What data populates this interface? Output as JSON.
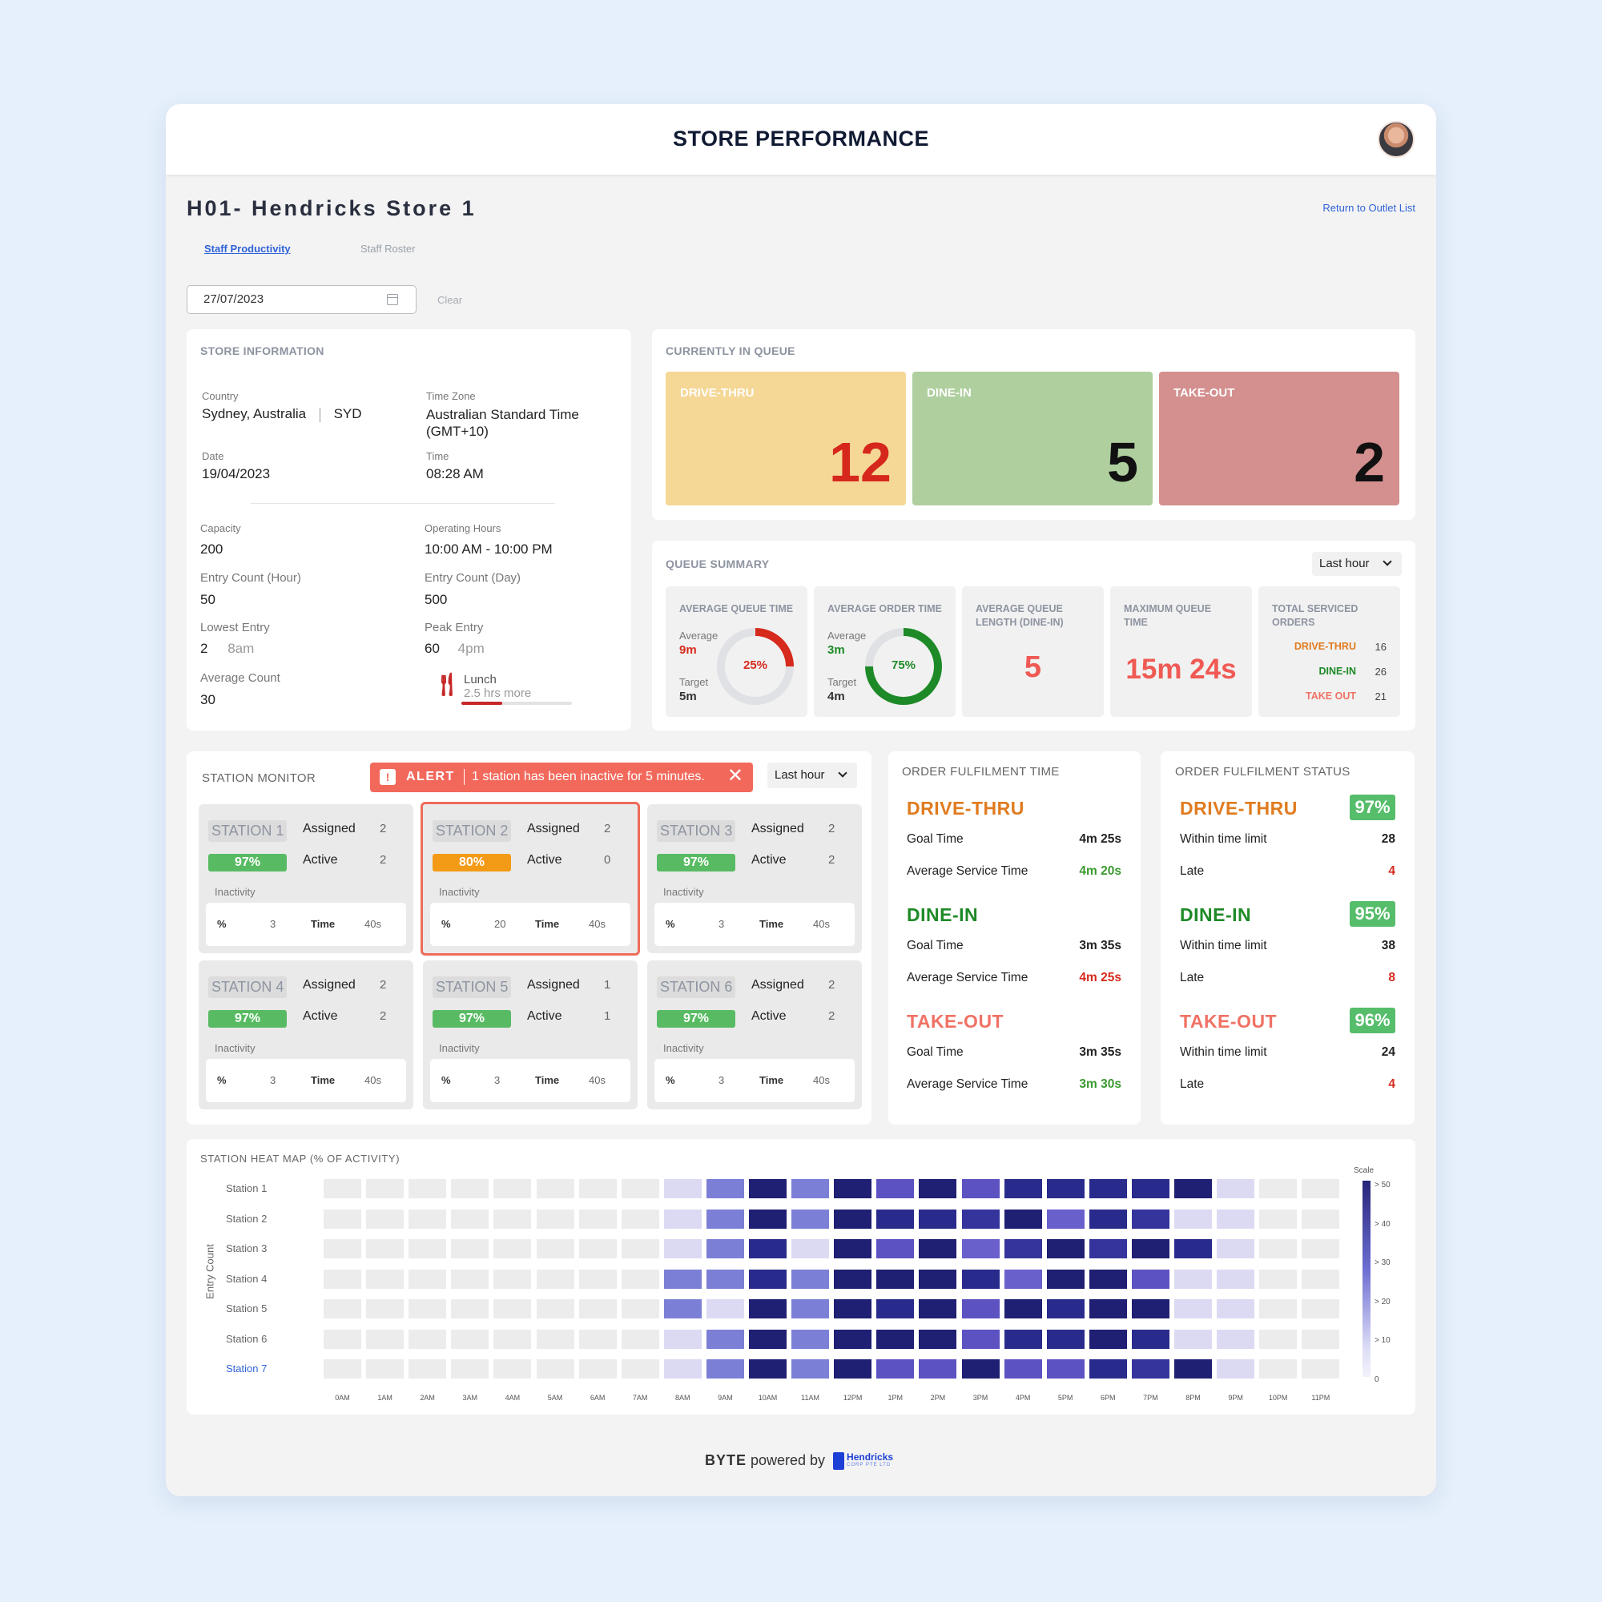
{
  "header": {
    "title": "STORE PERFORMANCE"
  },
  "store": {
    "name": "H01- Hendricks Store 1",
    "return_link": "Return to Outlet List"
  },
  "tabs": [
    {
      "label": "Staff Productivity"
    },
    {
      "label": "Staff Roster"
    }
  ],
  "date_filter": {
    "value": "27/07/2023",
    "clear_label": "Clear"
  },
  "store_info": {
    "title": "STORE INFORMATION",
    "country_label": "Country",
    "country": "Sydney, Australia",
    "country_code": "SYD",
    "timezone_label": "Time Zone",
    "timezone": "Australian Standard Time (GMT+10)",
    "date_label": "Date",
    "date": "19/04/2023",
    "time_label": "Time",
    "time": "08:28 AM",
    "capacity_label": "Capacity",
    "capacity": "200",
    "hours_label": "Operating Hours",
    "hours": "10:00 AM - 10:00 PM",
    "entry_hour_label": "Entry Count (Hour)",
    "entry_hour": "50",
    "entry_day_label": "Entry Count (Day)",
    "entry_day": "500",
    "lowest_label": "Lowest Entry",
    "lowest_value": "2",
    "lowest_time": "8am",
    "peak_label": "Peak Entry",
    "peak_value": "60",
    "peak_time": "4pm",
    "avg_label": "Average Count",
    "avg": "30",
    "lunch_label": "Lunch",
    "lunch_remaining": "2.5 hrs more",
    "lunch_progress": 0.37
  },
  "queue": {
    "title": "CURRENTLY IN QUEUE",
    "items": [
      {
        "label": "DRIVE-THRU",
        "value": "12",
        "bg": "#f5d796",
        "color": "#d6271c"
      },
      {
        "label": "DINE-IN",
        "value": "5",
        "bg": "#afcf9f",
        "color": "#111111"
      },
      {
        "label": "TAKE-OUT",
        "value": "2",
        "bg": "#d48f8f",
        "color": "#111111"
      }
    ]
  },
  "summary": {
    "title": "QUEUE SUMMARY",
    "range": "Last hour",
    "avg_queue": {
      "head": "AVERAGE QUEUE TIME",
      "avg_label": "Average",
      "avg": "9m",
      "target_label": "Target",
      "target": "5m",
      "pct": "25%",
      "fraction": 0.25
    },
    "avg_order": {
      "head": "AVERAGE ORDER TIME",
      "avg_label": "Average",
      "avg": "3m",
      "target_label": "Target",
      "target": "4m",
      "pct": "75%",
      "fraction": 0.75
    },
    "avg_len": {
      "head": "AVERAGE QUEUE LENGTH (DINE-IN)",
      "value": "5"
    },
    "max_queue": {
      "head": "MAXIMUM QUEUE TIME",
      "value": "15m 24s"
    },
    "total": {
      "head": "TOTAL SERVICED ORDERS",
      "rows": [
        {
          "label": "DRIVE-THRU",
          "value": "16"
        },
        {
          "label": "DINE-IN",
          "value": "26"
        },
        {
          "label": "TAKE OUT",
          "value": "21"
        }
      ]
    }
  },
  "station_monitor": {
    "title": "STATION MONITOR",
    "alert_label": "ALERT",
    "alert_message": "1 station has been inactive for 5 minutes.",
    "range": "Last hour",
    "assigned_label": "Assigned",
    "active_label": "Active",
    "inactivity_label": "Inactivity",
    "pct_label": "%",
    "time_label": "Time",
    "stations": [
      {
        "name": "STATION 1",
        "pct": "97%",
        "assigned": "2",
        "active": "2",
        "inact_pct": "3",
        "inact_time": "40s"
      },
      {
        "name": "STATION 2",
        "pct": "80%",
        "assigned": "2",
        "active": "0",
        "inact_pct": "20",
        "inact_time": "40s"
      },
      {
        "name": "STATION 3",
        "pct": "97%",
        "assigned": "2",
        "active": "2",
        "inact_pct": "3",
        "inact_time": "40s"
      },
      {
        "name": "STATION 4",
        "pct": "97%",
        "assigned": "2",
        "active": "2",
        "inact_pct": "3",
        "inact_time": "40s"
      },
      {
        "name": "STATION 5",
        "pct": "97%",
        "assigned": "1",
        "active": "1",
        "inact_pct": "3",
        "inact_time": "40s"
      },
      {
        "name": "STATION 6",
        "pct": "97%",
        "assigned": "2",
        "active": "2",
        "inact_pct": "3",
        "inact_time": "40s"
      }
    ]
  },
  "fulfil_time": {
    "title": "ORDER FULFILMENT TIME",
    "goal_label": "Goal Time",
    "avg_label": "Average Service Time",
    "items": [
      {
        "name": "DRIVE-THRU",
        "goal": "4m 25s",
        "avg": "4m 20s"
      },
      {
        "name": "DINE-IN",
        "goal": "3m 35s",
        "avg": "4m 25s"
      },
      {
        "name": "TAKE-OUT",
        "goal": "3m 35s",
        "avg": "3m 30s"
      }
    ]
  },
  "fulfil_status": {
    "title": "ORDER FULFILMENT STATUS",
    "within_label": "Within time limit",
    "late_label": "Late",
    "items": [
      {
        "name": "DRIVE-THRU",
        "pct": "97%",
        "within": "28",
        "late": "4"
      },
      {
        "name": "DINE-IN",
        "pct": "95%",
        "within": "38",
        "late": "8"
      },
      {
        "name": "TAKE-OUT",
        "pct": "96%",
        "within": "24",
        "late": "4"
      }
    ]
  },
  "colors": {
    "drive_thru": "#e07b1f",
    "dine_in": "#1e8a27",
    "take_out": "#f07265",
    "good_green": "#3a9a2e",
    "bad_red": "#d62a1c",
    "green_pill": "#58bb63",
    "orange_pill": "#f39a17"
  },
  "heatmap": {
    "title": "STATION HEAT MAP (% OF ACTIVITY)",
    "y_axis_label": "Entry Count",
    "scale_label": "Scale",
    "scale_ticks": [
      "> 50",
      "> 40",
      "> 30",
      "> 20",
      "> 10",
      "0"
    ]
  },
  "chart_data": {
    "type": "heatmap",
    "title": "STATION HEAT MAP (% OF ACTIVITY)",
    "ylabel": "Entry Count",
    "rows": [
      "Station 1",
      "Station 2",
      "Station 3",
      "Station 4",
      "Station 5",
      "Station 6",
      "Station 7"
    ],
    "columns": [
      "0AM",
      "1AM",
      "2AM",
      "3AM",
      "4AM",
      "5AM",
      "6AM",
      "7AM",
      "8AM",
      "9AM",
      "10AM",
      "11AM",
      "12PM",
      "1PM",
      "2PM",
      "3PM",
      "4PM",
      "5PM",
      "6PM",
      "7PM",
      "8PM",
      "9PM",
      "10PM",
      "11PM"
    ],
    "scale": [
      "0",
      "> 10",
      "> 20",
      "> 30",
      "> 40",
      "> 50"
    ],
    "values": [
      [
        0,
        0,
        0,
        0,
        0,
        0,
        0,
        0,
        10,
        30,
        55,
        30,
        55,
        40,
        55,
        40,
        50,
        50,
        50,
        50,
        55,
        10,
        0,
        0
      ],
      [
        0,
        0,
        0,
        0,
        0,
        0,
        0,
        0,
        10,
        30,
        55,
        30,
        55,
        50,
        50,
        45,
        55,
        35,
        50,
        45,
        10,
        10,
        0,
        0
      ],
      [
        0,
        0,
        0,
        0,
        0,
        0,
        0,
        0,
        10,
        30,
        50,
        10,
        55,
        40,
        55,
        35,
        45,
        55,
        45,
        55,
        50,
        10,
        0,
        0
      ],
      [
        0,
        0,
        0,
        0,
        0,
        0,
        0,
        0,
        30,
        30,
        50,
        30,
        55,
        55,
        55,
        50,
        35,
        55,
        55,
        40,
        10,
        10,
        0,
        0
      ],
      [
        0,
        0,
        0,
        0,
        0,
        0,
        0,
        0,
        30,
        10,
        55,
        30,
        55,
        50,
        55,
        40,
        55,
        50,
        55,
        55,
        10,
        10,
        0,
        0
      ],
      [
        0,
        0,
        0,
        0,
        0,
        0,
        0,
        0,
        10,
        30,
        55,
        30,
        55,
        55,
        55,
        40,
        50,
        50,
        55,
        50,
        10,
        10,
        0,
        0
      ],
      [
        0,
        0,
        0,
        0,
        0,
        0,
        0,
        0,
        10,
        30,
        55,
        30,
        55,
        40,
        40,
        55,
        40,
        40,
        50,
        45,
        55,
        10,
        0,
        0
      ]
    ]
  },
  "footer": {
    "brand": "BYTE",
    "powered": " powered by ",
    "partner": "Hendricks",
    "partner_sub": "CORP PTE LTD"
  }
}
